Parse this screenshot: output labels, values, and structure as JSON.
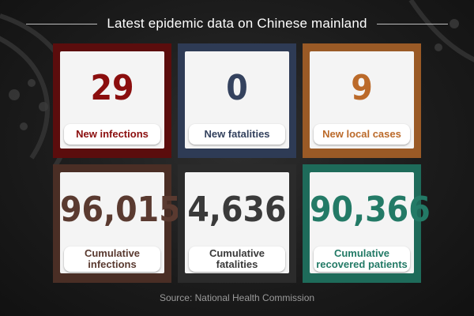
{
  "header": {
    "title": "Latest epidemic data on Chinese mainland"
  },
  "cards": [
    {
      "value": "29",
      "label": "New infections",
      "frame_color": "#5b0d0d",
      "text_color": "#8b0e0e"
    },
    {
      "value": "0",
      "label": "New fatalities",
      "frame_color": "#2e3b55",
      "text_color": "#34425e"
    },
    {
      "value": "9",
      "label": "New local cases",
      "frame_color": "#9a5a26",
      "text_color": "#bb6a2a"
    },
    {
      "value": "96,015",
      "label": "Cumulative infections",
      "frame_color": "#4a2e25",
      "text_color": "#5a3a30"
    },
    {
      "value": "4,636",
      "label": "Cumulative fatalities",
      "frame_color": "#2b2b2b",
      "text_color": "#3a3a3a"
    },
    {
      "value": "90,366",
      "label": "Cumulative recovered patients",
      "frame_color": "#1e6b5a",
      "text_color": "#237a66"
    }
  ],
  "footer": {
    "source": "Source: National Health Commission"
  }
}
